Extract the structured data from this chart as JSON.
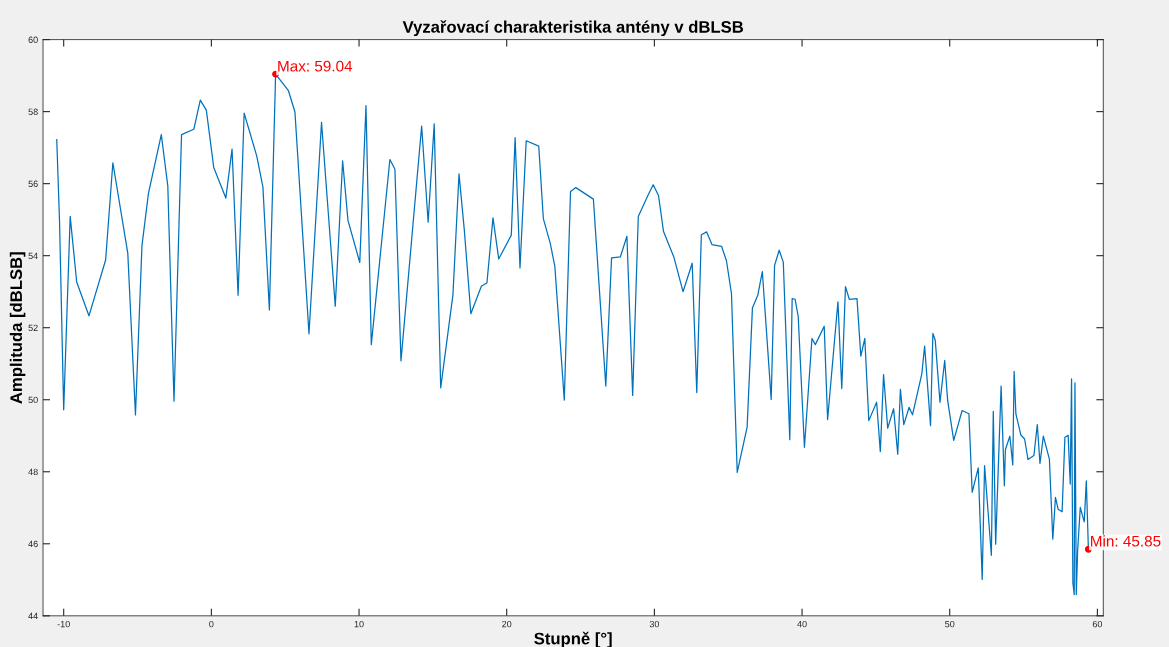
{
  "chart_data": {
    "type": "line",
    "title": "Vyzařovací charakteristika antény v dBLSB",
    "xlabel": "Stupně [°]",
    "ylabel": "Amplituda [dBLSB]",
    "xlim": [
      -11.4,
      60.4
    ],
    "xticks": [
      -10,
      0,
      10,
      20,
      30,
      40,
      50,
      60
    ],
    "ylim": [
      44,
      60
    ],
    "yticks": [
      44,
      46,
      48,
      50,
      52,
      54,
      56,
      58,
      60
    ],
    "grid": false,
    "marker": "none",
    "line_style": "solid",
    "series": [
      {
        "color": "#0072bd",
        "x": [
          -10.47,
          -10.28,
          -10.0,
          -9.56,
          -9.12,
          -8.29,
          -7.16,
          -6.67,
          -5.66,
          -5.14,
          -4.7,
          -4.26,
          -3.39,
          -2.95,
          -2.53,
          -2.02,
          -1.19,
          -0.75,
          -0.34,
          0.16,
          0.98,
          1.4,
          1.81,
          2.22,
          3.07,
          3.49,
          3.93,
          4.35,
          5.22,
          5.66,
          6.61,
          7.46,
          8.39,
          8.89,
          9.25,
          10.05,
          10.47,
          10.83,
          12.09,
          12.43,
          12.84,
          14.24,
          14.68,
          15.09,
          15.53,
          16.36,
          16.77,
          17.13,
          17.57,
          18.29,
          18.66,
          19.07,
          19.46,
          20.31,
          20.57,
          20.9,
          21.32,
          22.17,
          22.48,
          22.95,
          23.26,
          23.9,
          24.32,
          24.68,
          25.87,
          26.71,
          27.1,
          27.7,
          28.14,
          28.53,
          28.91,
          29.56,
          29.92,
          30.28,
          30.62,
          31.32,
          31.94,
          32.56,
          32.87,
          33.18,
          33.54,
          33.9,
          34.55,
          34.88,
          35.22,
          35.61,
          36.28,
          36.64,
          37.0,
          37.31,
          37.91,
          38.14,
          38.45,
          38.73,
          39.17,
          39.33,
          39.53,
          39.74,
          40.16,
          40.67,
          40.9,
          41.5,
          41.73,
          42.43,
          42.69,
          42.94,
          43.2,
          43.72,
          43.98,
          44.25,
          44.52,
          45.05,
          45.3,
          45.52,
          45.8,
          46.2,
          46.48,
          46.66,
          46.89,
          47.25,
          47.48,
          48.11,
          48.3,
          48.7,
          48.86,
          49.02,
          49.34,
          49.66,
          49.86,
          50.27,
          50.84,
          51.3,
          51.52,
          51.93,
          52.2,
          52.36,
          52.82,
          52.95,
          53.11,
          53.48,
          53.7,
          53.77,
          54.07,
          54.27,
          54.36,
          54.48,
          54.82,
          55.07,
          55.3,
          55.7,
          55.93,
          56.11,
          56.34,
          56.75,
          56.98,
          57.16,
          57.34,
          57.61,
          57.8,
          58.02,
          58.16,
          58.25,
          58.34,
          58.43,
          58.48,
          58.57,
          58.66,
          58.84,
          59.11,
          59.25,
          59.39
        ],
        "values": [
          57.22,
          54.93,
          49.72,
          55.09,
          53.27,
          52.33,
          53.88,
          56.58,
          54.07,
          49.58,
          54.28,
          55.73,
          57.36,
          55.94,
          49.96,
          57.36,
          57.51,
          58.32,
          58.04,
          56.45,
          55.6,
          56.96,
          52.9,
          57.96,
          56.77,
          55.91,
          52.49,
          59.04,
          58.58,
          57.99,
          51.83,
          57.7,
          52.6,
          56.63,
          54.98,
          53.81,
          58.17,
          51.53,
          56.67,
          56.4,
          51.08,
          57.6,
          54.93,
          57.66,
          50.33,
          52.92,
          56.27,
          54.71,
          52.39,
          53.16,
          53.24,
          55.05,
          53.91,
          54.57,
          57.28,
          53.66,
          57.19,
          57.04,
          55.03,
          54.34,
          53.7,
          49.99,
          55.78,
          55.89,
          55.57,
          50.38,
          53.94,
          53.97,
          54.54,
          50.12,
          55.09,
          55.67,
          55.97,
          55.67,
          54.67,
          53.96,
          53.0,
          53.79,
          50.2,
          54.58,
          54.66,
          54.31,
          54.26,
          53.86,
          52.95,
          47.98,
          49.24,
          52.55,
          52.9,
          53.56,
          50.01,
          53.73,
          54.15,
          53.82,
          48.89,
          52.81,
          52.79,
          52.31,
          48.68,
          51.7,
          51.53,
          52.04,
          49.45,
          52.72,
          50.31,
          53.14,
          52.79,
          52.81,
          51.21,
          51.7,
          49.42,
          49.93,
          48.56,
          50.7,
          49.21,
          49.75,
          48.49,
          50.29,
          49.31,
          49.79,
          49.58,
          50.72,
          51.49,
          49.28,
          51.84,
          51.65,
          49.93,
          51.09,
          49.98,
          48.87,
          49.7,
          49.61,
          47.43,
          48.11,
          45.01,
          48.17,
          45.68,
          49.68,
          45.99,
          50.38,
          47.61,
          48.61,
          48.99,
          48.19,
          50.79,
          49.61,
          49.02,
          48.91,
          48.34,
          48.45,
          49.31,
          48.23,
          48.99,
          48.35,
          46.13,
          47.29,
          46.96,
          46.89,
          48.96,
          49.01,
          47.66,
          50.58,
          44.92,
          44.59,
          50.47,
          44.59,
          45.8,
          47.01,
          46.61,
          47.75,
          45.85
        ]
      }
    ],
    "annotations": [
      {
        "text": "Max: 59.04",
        "x": 4.35,
        "y": 59.04
      },
      {
        "text": "Min: 45.85",
        "x": 59.39,
        "y": 45.85
      }
    ]
  }
}
